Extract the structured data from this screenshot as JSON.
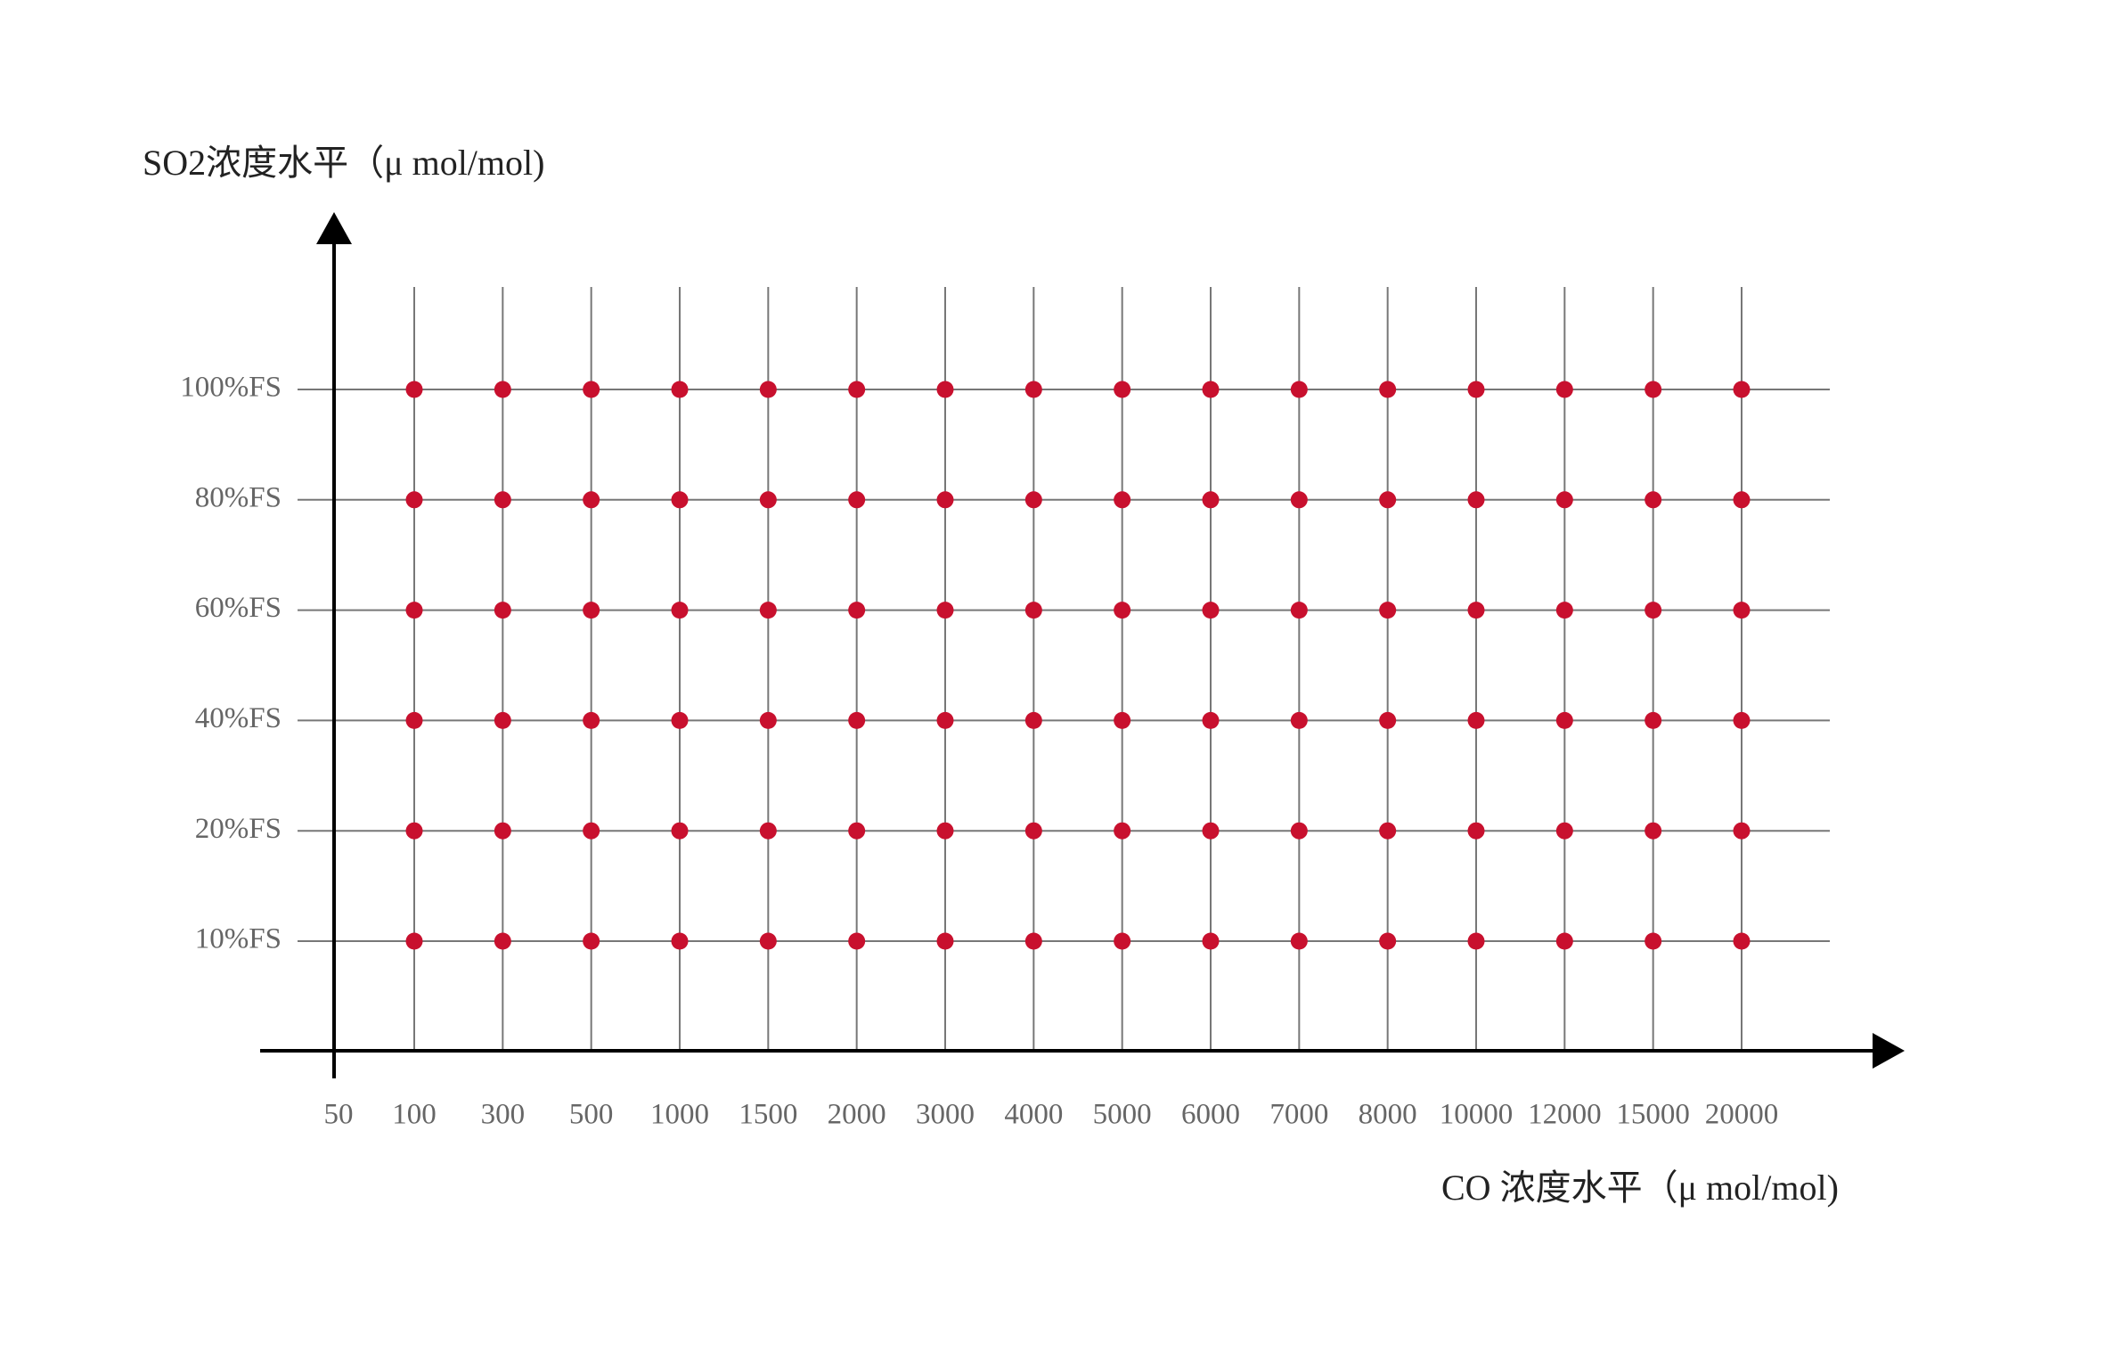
{
  "chart_data": {
    "type": "scatter",
    "y_title": "SO2浓度水平（μ mol/mol)",
    "x_title": "CO 浓度水平（μ mol/mol)",
    "axis_start_label": 50,
    "categories": [
      100,
      300,
      500,
      1000,
      1500,
      2000,
      3000,
      4000,
      5000,
      6000,
      7000,
      8000,
      10000,
      12000,
      15000,
      20000
    ],
    "y_categories": [
      "10%FS",
      "20%FS",
      "40%FS",
      "60%FS",
      "80%FS",
      "100%FS"
    ],
    "color": "#c8102e",
    "grid": true
  }
}
